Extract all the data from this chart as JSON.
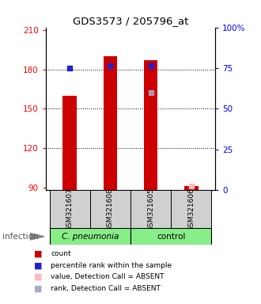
{
  "title": "GDS3573 / 205796_at",
  "samples": [
    "GSM321607",
    "GSM321608",
    "GSM321605",
    "GSM321606"
  ],
  "ylim_left": [
    88,
    212
  ],
  "ylim_right": [
    0,
    100
  ],
  "yticks_left": [
    90,
    120,
    150,
    180,
    210
  ],
  "yticks_right": [
    0,
    25,
    50,
    75,
    100
  ],
  "ytick_labels_right": [
    "0",
    "25",
    "50",
    "75",
    "100%"
  ],
  "count_values": [
    160,
    190,
    187,
    91
  ],
  "percentile_values": [
    181,
    183,
    183,
    null
  ],
  "detection_value_absent": [
    null,
    null,
    null,
    91
  ],
  "detection_rank_absent": [
    null,
    null,
    162,
    null
  ],
  "bar_color": "#cc0000",
  "blue_marker_color": "#2222cc",
  "pink_marker_color": "#ffbbbb",
  "lavender_marker_color": "#aaaacc",
  "group_label_1": "C. pneumonia",
  "group_label_2": "control",
  "infection_label": "infection",
  "legend_items": [
    {
      "label": "count",
      "color": "#cc0000"
    },
    {
      "label": "percentile rank within the sample",
      "color": "#2222cc"
    },
    {
      "label": "value, Detection Call = ABSENT",
      "color": "#ffbbbb"
    },
    {
      "label": "rank, Detection Call = ABSENT",
      "color": "#aaaacc"
    }
  ]
}
